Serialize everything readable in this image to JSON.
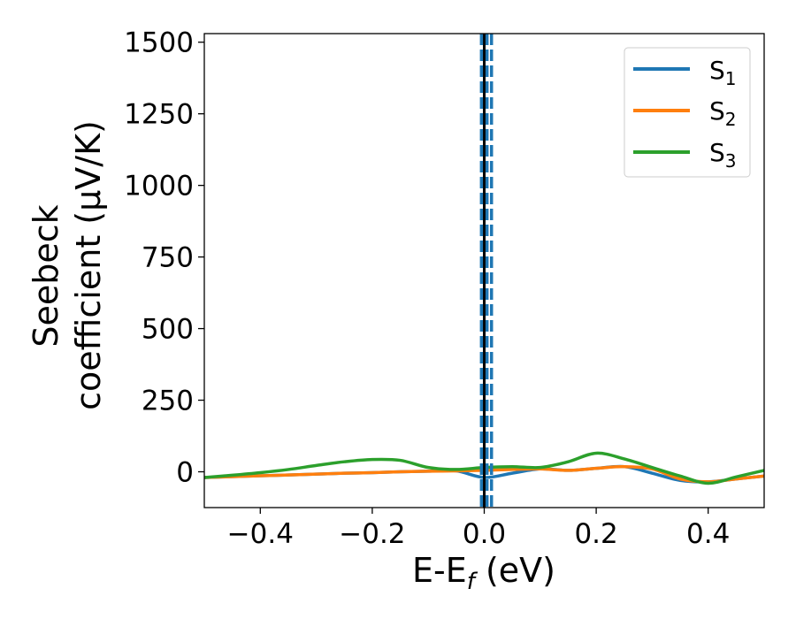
{
  "chart_data": {
    "type": "line",
    "title": "",
    "xlabel": "E-E",
    "xlabel_sub": "f",
    "xlabel_suffix": " (eV)",
    "ylabel_line1": "Seebeck",
    "ylabel_line2": "coefficient  (μV/K)",
    "xlim": [
      -0.5,
      0.5
    ],
    "ylim": [
      -125,
      1530
    ],
    "x_ticks": [
      -0.4,
      -0.2,
      0.0,
      0.2,
      0.4
    ],
    "x_tick_labels": [
      "−0.4",
      "−0.2",
      "0.0",
      "0.2",
      "0.4"
    ],
    "y_ticks": [
      0,
      250,
      500,
      750,
      1000,
      1250,
      1500
    ],
    "y_tick_labels": [
      "0",
      "250",
      "500",
      "750",
      "1000",
      "1250",
      "1500"
    ],
    "grid": false,
    "legend_position": "top-right",
    "x": [
      -0.5,
      -0.45,
      -0.4,
      -0.35,
      -0.3,
      -0.25,
      -0.2,
      -0.15,
      -0.1,
      -0.05,
      0.0,
      0.05,
      0.1,
      0.15,
      0.2,
      0.25,
      0.3,
      0.35,
      0.4,
      0.45,
      0.5
    ],
    "series": [
      {
        "name_main": "S",
        "name_sub": "1",
        "color": "#1f77b4",
        "values": [
          -20,
          -17,
          -14,
          -11,
          -8,
          -5,
          -3,
          0,
          2,
          3,
          -20,
          -5,
          10,
          5,
          12,
          18,
          -5,
          -30,
          -35,
          -25,
          -15
        ]
      },
      {
        "name_main": "S",
        "name_sub": "2",
        "color": "#ff7f0e",
        "values": [
          -20,
          -17,
          -14,
          -11,
          -8,
          -5,
          -3,
          0,
          2,
          3,
          5,
          8,
          10,
          5,
          12,
          18,
          10,
          -25,
          -35,
          -25,
          -15
        ]
      },
      {
        "name_main": "S",
        "name_sub": "3",
        "color": "#2ca02c",
        "values": [
          -20,
          -12,
          -3,
          8,
          22,
          35,
          43,
          40,
          15,
          8,
          15,
          18,
          15,
          35,
          65,
          45,
          15,
          -15,
          -40,
          -18,
          5
        ]
      }
    ],
    "vertical_lines": [
      {
        "x": 0.0,
        "color": "#000000",
        "style": "solid"
      },
      {
        "x": -0.005,
        "color": "#1f77b4",
        "style": "dashed"
      },
      {
        "x": 0.005,
        "color": "#1f77b4",
        "style": "dashed"
      },
      {
        "x": 0.013,
        "color": "#1f77b4",
        "style": "dashed"
      }
    ]
  }
}
